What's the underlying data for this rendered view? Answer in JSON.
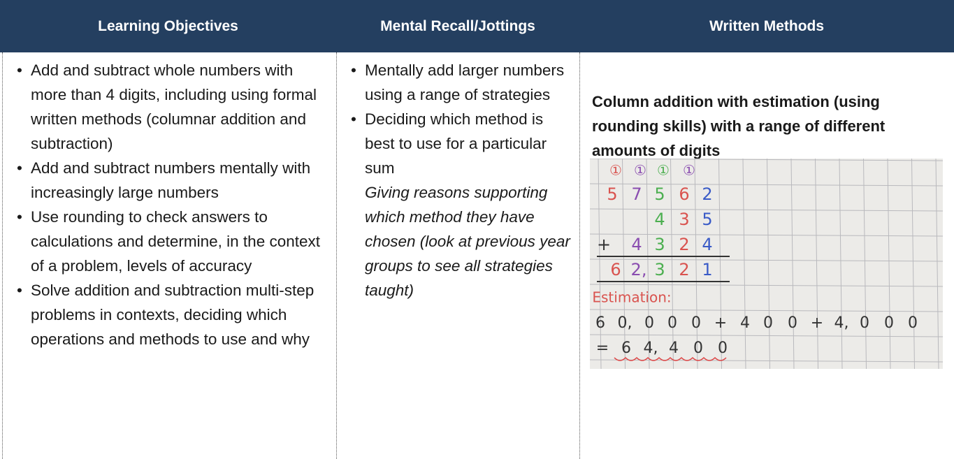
{
  "table": {
    "headers": [
      "Learning Objectives",
      "Mental Recall/Jottings",
      "Written Methods"
    ],
    "learning_objectives": [
      "Add and subtract whole numbers with more than 4 digits, including using formal written methods (columnar addition and subtraction)",
      "Add and subtract numbers mentally with increasingly large numbers",
      "Use rounding to check answers to calculations and determine, in the context of a problem, levels of accuracy",
      "Solve addition and subtraction multi-step problems in contexts, deciding which operations and methods to use and why"
    ],
    "mental_recall": [
      {
        "text": "Mentally add larger numbers using a range of strategies"
      },
      {
        "text": "Deciding which method is best to use for a particular sum",
        "note": "Giving reasons supporting which method they have chosen (look at previous year groups to see all strategies taught)"
      }
    ],
    "written_methods": {
      "heading": "Column addition with estimation (using rounding skills) with a range of different amounts of digits",
      "image": {
        "rows": [
          [
            "①",
            "①",
            "①",
            "①"
          ],
          [
            "5",
            "7",
            "5",
            "6",
            "2"
          ],
          [
            "4",
            "3",
            "5"
          ],
          [
            "+",
            "4",
            "3",
            "2",
            "4"
          ],
          [
            "6",
            "2,",
            "3",
            "2",
            "1"
          ],
          [
            "Estimation:"
          ],
          [
            "6",
            "0,",
            "0",
            "0",
            "0",
            "+",
            "4",
            "0",
            "0",
            "+",
            "4,",
            "0",
            "0",
            "0"
          ],
          [
            "=",
            "6",
            "4,",
            "4",
            "0",
            "0"
          ]
        ]
      }
    }
  }
}
